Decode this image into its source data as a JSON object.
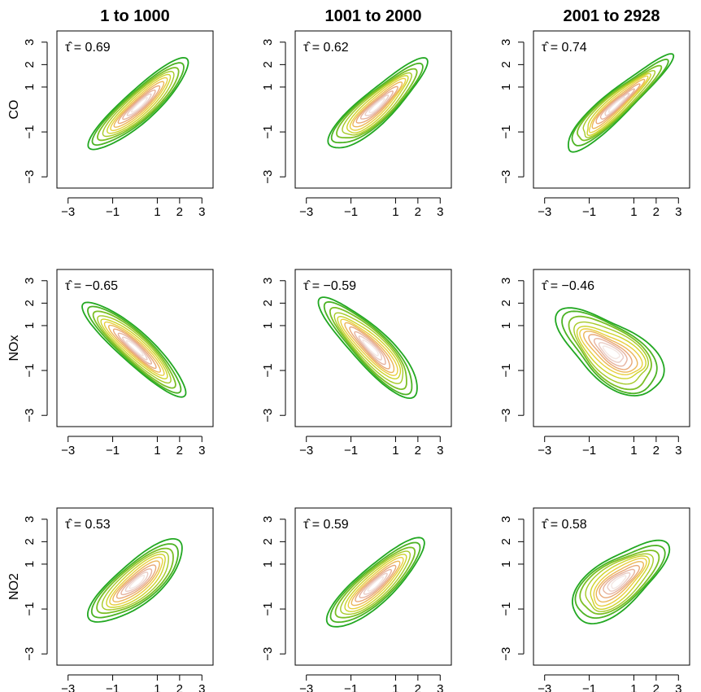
{
  "column_titles": [
    "1 to 1000",
    "1001 to 2000",
    "2001 to  2928"
  ],
  "row_labels": [
    "CO",
    "NOx",
    "NO2"
  ],
  "colors": {
    "contour_levels": [
      "#22a822",
      "#4cb324",
      "#7cbf26",
      "#a6c927",
      "#cdd32a",
      "#e8cf3f",
      "#ebb658",
      "#e8a878",
      "#e6b39f",
      "#eaccc4",
      "#f3e6e2"
    ],
    "axis": "#000000",
    "panel_border": "#000000"
  },
  "chart_data": [
    {
      "type": "contour",
      "row": "CO",
      "col": "1 to 1000",
      "xlim": [
        -3.5,
        3.5
      ],
      "ylim": [
        -3.5,
        3.5
      ],
      "xticks": [
        -3,
        -1,
        1,
        2,
        3
      ],
      "yticks": [
        -3,
        -1,
        1,
        2,
        3
      ],
      "tau_label": "τ̂ = 0.69",
      "tau": 0.69,
      "shape": {
        "cx": 0.2,
        "cy": 0.2,
        "angle_deg": 42,
        "a": 2.85,
        "b": 0.72,
        "wobble": 0.05
      }
    },
    {
      "type": "contour",
      "row": "CO",
      "col": "1001 to 2000",
      "xlim": [
        -3.5,
        3.5
      ],
      "ylim": [
        -3.5,
        3.5
      ],
      "xticks": [
        -3,
        -1,
        1,
        2,
        3
      ],
      "yticks": [
        -3,
        -1,
        1,
        2,
        3
      ],
      "tau_label": "τ̂ = 0.62",
      "tau": 0.62,
      "shape": {
        "cx": 0.15,
        "cy": 0.15,
        "angle_deg": 42,
        "a": 2.75,
        "b": 0.75,
        "wobble": 0.08
      }
    },
    {
      "type": "contour",
      "row": "CO",
      "col": "2001 to  2928",
      "xlim": [
        -3.5,
        3.5
      ],
      "ylim": [
        -3.5,
        3.5
      ],
      "xticks": [
        -3,
        -1,
        1,
        2,
        3
      ],
      "yticks": [
        -3,
        -1,
        1,
        2,
        3
      ],
      "tau_label": "τ̂ = 0.74",
      "tau": 0.74,
      "shape": {
        "cx": 0.2,
        "cy": 0.2,
        "angle_deg": 42,
        "a": 2.95,
        "b": 0.62,
        "wobble": 0.1
      }
    },
    {
      "type": "contour",
      "row": "NOx",
      "col": "1 to 1000",
      "xlim": [
        -3.5,
        3.5
      ],
      "ylim": [
        -3.5,
        3.5
      ],
      "xticks": [
        -3,
        -1,
        1,
        2,
        3
      ],
      "yticks": [
        -3,
        -1,
        1,
        2,
        3
      ],
      "tau_label": "τ̂ = −0.65",
      "tau": -0.65,
      "shape": {
        "cx": 0.0,
        "cy": 0.0,
        "angle_deg": -42,
        "a": 2.95,
        "b": 0.72,
        "wobble": 0.05
      }
    },
    {
      "type": "contour",
      "row": "NOx",
      "col": "1001 to 2000",
      "xlim": [
        -3.5,
        3.5
      ],
      "ylim": [
        -3.5,
        3.5
      ],
      "xticks": [
        -3,
        -1,
        1,
        2,
        3
      ],
      "yticks": [
        -3,
        -1,
        1,
        2,
        3
      ],
      "tau_label": "τ̂ = −0.59",
      "tau": -0.59,
      "shape": {
        "cx": -0.1,
        "cy": 0.0,
        "angle_deg": -45,
        "a": 2.9,
        "b": 0.85,
        "wobble": 0.07
      }
    },
    {
      "type": "contour",
      "row": "NOx",
      "col": "2001 to  2928",
      "xlim": [
        -3.5,
        3.5
      ],
      "ylim": [
        -3.5,
        3.5
      ],
      "xticks": [
        -3,
        -1,
        1,
        2,
        3
      ],
      "yticks": [
        -3,
        -1,
        1,
        2,
        3
      ],
      "tau_label": "τ̂ = −0.46",
      "tau": -0.46,
      "shape": {
        "cx": 0.0,
        "cy": -0.2,
        "angle_deg": -35,
        "a": 2.6,
        "b": 1.35,
        "wobble": 0.1
      }
    },
    {
      "type": "contour",
      "row": "NO2",
      "col": "1 to 1000",
      "xlim": [
        -3.5,
        3.5
      ],
      "ylim": [
        -3.5,
        3.5
      ],
      "xticks": [
        -3,
        -1,
        1,
        2,
        3
      ],
      "yticks": [
        -3,
        -1,
        1,
        2,
        3
      ],
      "tau_label": "τ̂ = 0.53",
      "tau": 0.53,
      "shape": {
        "cx": 0.1,
        "cy": 0.2,
        "angle_deg": 40,
        "a": 2.55,
        "b": 0.95,
        "wobble": 0.06
      }
    },
    {
      "type": "contour",
      "row": "NO2",
      "col": "1001 to 2000",
      "xlim": [
        -3.5,
        3.5
      ],
      "ylim": [
        -3.5,
        3.5
      ],
      "xticks": [
        -3,
        -1,
        1,
        2,
        3
      ],
      "yticks": [
        -3,
        -1,
        1,
        2,
        3
      ],
      "tau_label": "τ̂ = 0.59",
      "tau": 0.59,
      "shape": {
        "cx": 0.1,
        "cy": 0.1,
        "angle_deg": 42,
        "a": 2.75,
        "b": 0.82,
        "wobble": 0.05
      }
    },
    {
      "type": "contour",
      "row": "NO2",
      "col": "2001 to  2928",
      "xlim": [
        -3.5,
        3.5
      ],
      "ylim": [
        -3.5,
        3.5
      ],
      "xticks": [
        -3,
        -1,
        1,
        2,
        3
      ],
      "yticks": [
        -3,
        -1,
        1,
        2,
        3
      ],
      "tau_label": "τ̂ = 0.58",
      "tau": 0.58,
      "shape": {
        "cx": 0.3,
        "cy": 0.2,
        "angle_deg": 38,
        "a": 2.45,
        "b": 1.15,
        "wobble": 0.09
      }
    }
  ]
}
